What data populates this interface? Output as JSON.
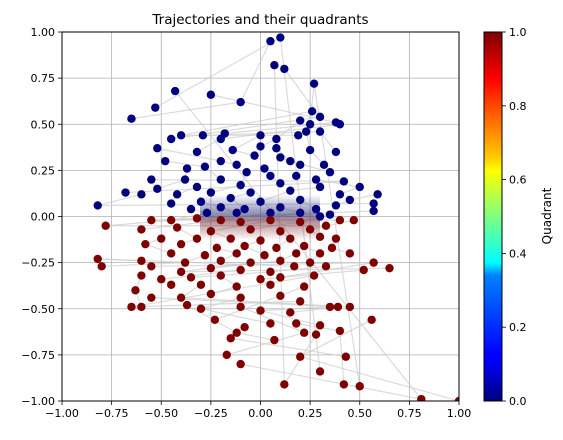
{
  "chart_data": {
    "type": "scatter",
    "title": "Trajectories and their quadrants",
    "xlabel": "",
    "ylabel": "",
    "xlim": [
      -1.0,
      1.0
    ],
    "ylim": [
      -1.0,
      1.0
    ],
    "grid": true,
    "xticks": [
      "−1.00",
      "−0.75",
      "−0.50",
      "−0.25",
      "0.00",
      "0.25",
      "0.50",
      "0.75",
      "1.00"
    ],
    "yticks": [
      "−1.00",
      "−0.75",
      "−0.50",
      "−0.25",
      "0.00",
      "0.25",
      "0.50",
      "0.75",
      "1.00"
    ],
    "colorbar": {
      "label": "Quadrant",
      "range": [
        0.0,
        1.0
      ],
      "ticks": [
        "0.0",
        "0.2",
        "0.4",
        "0.6",
        "0.8",
        "1.0"
      ],
      "colormap": "jet"
    },
    "colors": {
      "quadrant_0": "#00007f",
      "quadrant_1": "#7f0000",
      "trajectory_line": "#cccccc"
    },
    "series": [
      {
        "quadrant": 0,
        "points": [
          [
            0.05,
            0.95
          ],
          [
            0.1,
            0.97
          ],
          [
            0.07,
            0.82
          ],
          [
            0.12,
            0.8
          ],
          [
            0.27,
            0.72
          ],
          [
            -0.43,
            0.68
          ],
          [
            -0.25,
            0.66
          ],
          [
            -0.1,
            0.62
          ],
          [
            -0.53,
            0.59
          ],
          [
            0.26,
            0.57
          ],
          [
            0.3,
            0.54
          ],
          [
            0.25,
            0.5
          ],
          [
            0.4,
            0.5
          ],
          [
            0.38,
            0.51
          ],
          [
            -0.65,
            0.53
          ],
          [
            0.2,
            0.52
          ],
          [
            -0.4,
            0.44
          ],
          [
            -0.45,
            0.42
          ],
          [
            -0.29,
            0.44
          ],
          [
            -0.2,
            0.42
          ],
          [
            -0.18,
            0.45
          ],
          [
            0.0,
            0.44
          ],
          [
            0.08,
            0.42
          ],
          [
            0.19,
            0.44
          ],
          [
            0.23,
            0.46
          ],
          [
            0.3,
            0.46
          ],
          [
            -0.32,
            0.35
          ],
          [
            -0.52,
            0.37
          ],
          [
            -0.14,
            0.36
          ],
          [
            0.0,
            0.38
          ],
          [
            0.08,
            0.37
          ],
          [
            0.25,
            0.36
          ],
          [
            0.38,
            0.35
          ],
          [
            -0.48,
            0.3
          ],
          [
            -0.2,
            0.3
          ],
          [
            -0.03,
            0.33
          ],
          [
            0.1,
            0.32
          ],
          [
            0.15,
            0.3
          ],
          [
            0.32,
            0.28
          ],
          [
            -0.37,
            0.26
          ],
          [
            -0.28,
            0.27
          ],
          [
            -0.12,
            0.28
          ],
          [
            0.02,
            0.26
          ],
          [
            0.2,
            0.28
          ],
          [
            0.35,
            0.24
          ],
          [
            -0.55,
            0.2
          ],
          [
            -0.38,
            0.2
          ],
          [
            -0.2,
            0.2
          ],
          [
            -0.07,
            0.24
          ],
          [
            0.05,
            0.22
          ],
          [
            0.18,
            0.22
          ],
          [
            0.28,
            0.2
          ],
          [
            0.42,
            0.19
          ],
          [
            -0.52,
            0.15
          ],
          [
            -0.32,
            0.16
          ],
          [
            -0.1,
            0.17
          ],
          [
            0.1,
            0.18
          ],
          [
            0.3,
            0.16
          ],
          [
            0.5,
            0.16
          ],
          [
            -0.68,
            0.13
          ],
          [
            -0.6,
            0.12
          ],
          [
            -0.42,
            0.12
          ],
          [
            -0.25,
            0.13
          ],
          [
            -0.05,
            0.13
          ],
          [
            0.15,
            0.14
          ],
          [
            0.4,
            0.12
          ],
          [
            0.59,
            0.12
          ],
          [
            -0.82,
            0.06
          ],
          [
            -0.45,
            0.07
          ],
          [
            -0.3,
            0.08
          ],
          [
            -0.15,
            0.1
          ],
          [
            0.0,
            0.08
          ],
          [
            0.2,
            0.09
          ],
          [
            0.45,
            0.09
          ],
          [
            0.57,
            0.07
          ],
          [
            -0.35,
            0.04
          ],
          [
            -0.2,
            0.05
          ],
          [
            -0.08,
            0.04
          ],
          [
            0.1,
            0.05
          ],
          [
            0.28,
            0.04
          ],
          [
            0.38,
            0.06
          ],
          [
            0.57,
            0.03
          ],
          [
            -0.27,
            0.02
          ],
          [
            -0.12,
            0.02
          ],
          [
            0.05,
            0.02
          ],
          [
            0.2,
            0.02
          ],
          [
            0.3,
            0.0
          ],
          [
            0.35,
            0.01
          ]
        ]
      },
      {
        "quadrant": 1,
        "points": [
          [
            -0.55,
            -0.02
          ],
          [
            -0.45,
            -0.02
          ],
          [
            -0.32,
            -0.01
          ],
          [
            -0.2,
            -0.02
          ],
          [
            -0.1,
            -0.03
          ],
          [
            0.05,
            -0.02
          ],
          [
            0.2,
            -0.03
          ],
          [
            0.4,
            -0.02
          ],
          [
            0.47,
            -0.02
          ],
          [
            -0.78,
            -0.05
          ],
          [
            -0.6,
            -0.07
          ],
          [
            -0.42,
            -0.06
          ],
          [
            -0.25,
            -0.08
          ],
          [
            -0.05,
            -0.07
          ],
          [
            0.1,
            -0.08
          ],
          [
            0.25,
            -0.07
          ],
          [
            0.33,
            -0.05
          ],
          [
            -0.5,
            -0.12
          ],
          [
            -0.32,
            -0.12
          ],
          [
            -0.15,
            -0.12
          ],
          [
            0.0,
            -0.13
          ],
          [
            0.15,
            -0.12
          ],
          [
            0.3,
            -0.11
          ],
          [
            0.38,
            -0.12
          ],
          [
            -0.58,
            -0.15
          ],
          [
            -0.4,
            -0.15
          ],
          [
            -0.22,
            -0.17
          ],
          [
            -0.08,
            -0.16
          ],
          [
            0.08,
            -0.17
          ],
          [
            0.22,
            -0.16
          ],
          [
            0.36,
            -0.17
          ],
          [
            -0.45,
            -0.2
          ],
          [
            -0.28,
            -0.21
          ],
          [
            -0.12,
            -0.2
          ],
          [
            0.02,
            -0.21
          ],
          [
            0.18,
            -0.2
          ],
          [
            0.3,
            -0.2
          ],
          [
            0.45,
            -0.2
          ],
          [
            -0.6,
            -0.24
          ],
          [
            -0.38,
            -0.25
          ],
          [
            -0.2,
            -0.24
          ],
          [
            -0.05,
            -0.25
          ],
          [
            0.1,
            -0.24
          ],
          [
            0.25,
            -0.25
          ],
          [
            0.33,
            -0.27
          ],
          [
            -0.82,
            -0.23
          ],
          [
            -0.8,
            -0.27
          ],
          [
            -0.55,
            -0.27
          ],
          [
            -0.4,
            -0.3
          ],
          [
            -0.25,
            -0.28
          ],
          [
            -0.1,
            -0.29
          ],
          [
            0.05,
            -0.3
          ],
          [
            0.17,
            -0.27
          ],
          [
            0.52,
            -0.29
          ],
          [
            0.57,
            -0.25
          ],
          [
            0.65,
            -0.28
          ],
          [
            -0.6,
            -0.32
          ],
          [
            -0.5,
            -0.34
          ],
          [
            -0.35,
            -0.33
          ],
          [
            -0.2,
            -0.32
          ],
          [
            0.0,
            -0.34
          ],
          [
            0.1,
            -0.33
          ],
          [
            0.27,
            -0.32
          ],
          [
            -0.63,
            -0.4
          ],
          [
            -0.45,
            -0.37
          ],
          [
            -0.3,
            -0.37
          ],
          [
            -0.12,
            -0.38
          ],
          [
            0.05,
            -0.37
          ],
          [
            0.22,
            -0.38
          ],
          [
            -0.65,
            -0.49
          ],
          [
            -0.6,
            -0.49
          ],
          [
            -0.55,
            -0.44
          ],
          [
            -0.4,
            -0.44
          ],
          [
            -0.25,
            -0.42
          ],
          [
            -0.1,
            -0.44
          ],
          [
            0.1,
            -0.43
          ],
          [
            0.2,
            -0.46
          ],
          [
            0.35,
            -0.49
          ],
          [
            0.39,
            -0.49
          ],
          [
            0.45,
            -0.49
          ],
          [
            -0.37,
            -0.48
          ],
          [
            -0.3,
            -0.5
          ],
          [
            -0.23,
            -0.56
          ],
          [
            -0.1,
            -0.49
          ],
          [
            0.0,
            -0.51
          ],
          [
            0.15,
            -0.52
          ],
          [
            -0.08,
            -0.6
          ],
          [
            -0.12,
            -0.63
          ],
          [
            0.05,
            -0.58
          ],
          [
            0.18,
            -0.58
          ],
          [
            0.22,
            -0.63
          ],
          [
            0.3,
            -0.59
          ],
          [
            0.56,
            -0.56
          ],
          [
            -0.15,
            -0.66
          ],
          [
            0.07,
            -0.67
          ],
          [
            0.28,
            -0.64
          ],
          [
            0.4,
            -0.62
          ],
          [
            -0.17,
            -0.75
          ],
          [
            -0.1,
            -0.8
          ],
          [
            0.2,
            -0.76
          ],
          [
            0.43,
            -0.76
          ],
          [
            0.3,
            -0.84
          ],
          [
            0.12,
            -0.91
          ],
          [
            0.42,
            -0.91
          ],
          [
            0.5,
            -0.92
          ],
          [
            0.81,
            -0.99
          ],
          [
            1.0,
            -1.0
          ]
        ]
      }
    ]
  }
}
